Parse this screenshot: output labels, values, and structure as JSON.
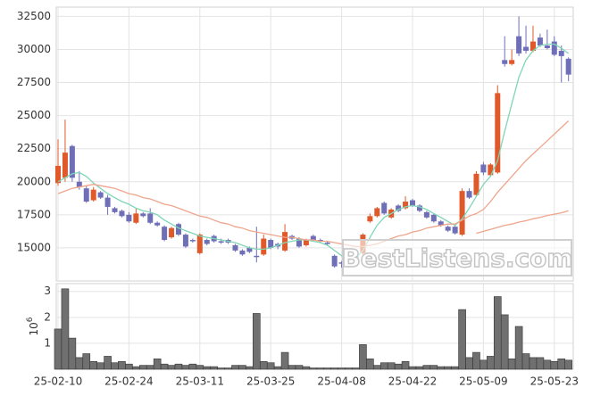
{
  "chart_data": [
    {
      "type": "candlestick",
      "open": [
        19900,
        20300,
        22700,
        20000,
        19500,
        18600,
        19200,
        18800,
        18000,
        17800,
        17500,
        16900,
        17600,
        17600,
        16900,
        16600,
        15800,
        16800,
        16000,
        15600,
        14600,
        15600,
        15900,
        15500,
        15600,
        15200,
        14800,
        15000,
        14400,
        14500,
        15600,
        15300,
        14800,
        15900,
        15700,
        15200,
        15900,
        15600,
        15400,
        14400,
        13900,
        13600,
        14400,
        14600,
        17000,
        17400,
        18400,
        17300,
        18200,
        18000,
        18600,
        18200,
        17700,
        17500,
        17000,
        16600,
        16600,
        16000,
        19300,
        19000,
        21300,
        20500,
        20700,
        29200,
        28900,
        31000,
        30200,
        29900,
        30900,
        30300,
        30600,
        29900,
        29300
      ],
      "high": [
        23200,
        24700,
        22800,
        20800,
        19700,
        19600,
        19300,
        19000,
        18100,
        17900,
        17700,
        18000,
        17700,
        18000,
        17000,
        16700,
        16600,
        16900,
        16100,
        15700,
        16100,
        15700,
        16000,
        15700,
        15700,
        15300,
        14900,
        15100,
        16600,
        16000,
        15700,
        15400,
        16800,
        16000,
        15800,
        15700,
        16000,
        15700,
        15500,
        14500,
        14000,
        13900,
        14500,
        16100,
        17600,
        18100,
        18500,
        18000,
        18300,
        18900,
        18700,
        18300,
        17800,
        17600,
        17100,
        16700,
        16700,
        19500,
        19500,
        20800,
        21500,
        21400,
        27300,
        31000,
        30000,
        32500,
        31800,
        31800,
        31200,
        31500,
        31000,
        30300,
        29400
      ],
      "low": [
        19700,
        20000,
        20000,
        19400,
        18400,
        18500,
        18700,
        17500,
        17600,
        17300,
        16900,
        16800,
        17300,
        16800,
        16600,
        15500,
        15700,
        15900,
        15000,
        15400,
        14500,
        15200,
        15400,
        15300,
        15300,
        14700,
        14400,
        14600,
        13900,
        14400,
        14900,
        14900,
        14700,
        15600,
        15000,
        15100,
        15500,
        15400,
        15200,
        13500,
        13500,
        13500,
        13900,
        14500,
        16900,
        17300,
        17500,
        17200,
        17700,
        17900,
        18100,
        17700,
        17200,
        16900,
        16600,
        16200,
        16000,
        15900,
        18700,
        18900,
        20500,
        20400,
        20600,
        28700,
        28800,
        29500,
        29700,
        29800,
        30200,
        30000,
        29500,
        27500,
        27600
      ],
      "close": [
        21200,
        22200,
        20300,
        19600,
        18500,
        19400,
        18800,
        18100,
        17700,
        17400,
        17000,
        17600,
        17400,
        16900,
        16700,
        15600,
        16500,
        16000,
        15100,
        15500,
        16000,
        15300,
        15500,
        15400,
        15400,
        14800,
        14500,
        14700,
        14300,
        15700,
        15000,
        15100,
        16200,
        15700,
        15100,
        15600,
        15600,
        15500,
        15300,
        13600,
        13800,
        13800,
        14000,
        16000,
        17400,
        18000,
        17600,
        17900,
        17800,
        18500,
        18200,
        17800,
        17300,
        17000,
        16700,
        16300,
        16100,
        19300,
        18800,
        20600,
        20700,
        21300,
        26700,
        28900,
        29200,
        29700,
        29900,
        30600,
        30300,
        30100,
        29600,
        29500,
        28100
      ],
      "up_color": "#e0592a",
      "down_color": "#6f6fb8",
      "lines": [
        {
          "color": "#7fd6b6",
          "values": [
            20000,
            20300,
            20600,
            20700,
            20400,
            19900,
            19500,
            19100,
            18800,
            18500,
            18300,
            18000,
            17800,
            17700,
            17500,
            17100,
            16800,
            16500,
            16300,
            16100,
            15900,
            15800,
            15700,
            15600,
            15500,
            15400,
            15200,
            15000,
            14900,
            14900,
            15000,
            15200,
            15400,
            15500,
            15600,
            15600,
            15500,
            15400,
            15200,
            14800,
            14400,
            14100,
            14200,
            14800,
            15800,
            16700,
            17300,
            17600,
            17900,
            18100,
            18200,
            18100,
            17900,
            17600,
            17300,
            17000,
            16700,
            17200,
            18000,
            18900,
            19800,
            20400,
            21600,
            23800,
            25900,
            27900,
            29200,
            29900,
            30300,
            30400,
            30400,
            30100,
            29700
          ]
        },
        {
          "color": "#eea58c",
          "values": [
            19100,
            19300,
            19500,
            19600,
            19700,
            19800,
            19700,
            19600,
            19500,
            19300,
            19100,
            19000,
            18800,
            18700,
            18500,
            18300,
            18200,
            18000,
            17800,
            17600,
            17400,
            17300,
            17100,
            16900,
            16800,
            16600,
            16500,
            16300,
            16200,
            16100,
            16000,
            15900,
            15800,
            15800,
            15700,
            15600,
            15600,
            15500,
            15500,
            15400,
            15300,
            15200,
            15100,
            15100,
            15200,
            15300,
            15500,
            15700,
            15900,
            16000,
            16200,
            16300,
            16500,
            16600,
            16700,
            16800,
            16800,
            17100,
            17400,
            17600,
            17900,
            18500,
            19200,
            19800,
            20400,
            21000,
            21600,
            22100,
            22600,
            23100,
            23600,
            24100,
            24600
          ]
        },
        {
          "color": "#eea58c",
          "values": [
            null,
            null,
            null,
            null,
            null,
            null,
            null,
            null,
            null,
            null,
            null,
            null,
            null,
            null,
            null,
            null,
            null,
            null,
            null,
            null,
            null,
            null,
            null,
            null,
            null,
            null,
            null,
            null,
            null,
            null,
            null,
            null,
            null,
            null,
            null,
            null,
            null,
            null,
            null,
            null,
            null,
            null,
            null,
            null,
            null,
            null,
            null,
            null,
            null,
            null,
            null,
            null,
            null,
            null,
            null,
            null,
            null,
            null,
            null,
            16100,
            16250,
            16400,
            16550,
            16700,
            16800,
            16950,
            17050,
            17200,
            17300,
            17450,
            17550,
            17650,
            17800
          ]
        }
      ],
      "ylim": [
        12500,
        33200
      ],
      "yticks": [
        15000,
        17500,
        20000,
        22500,
        25000,
        27500,
        30000,
        32500
      ],
      "grid": true,
      "watermark": "BestListens.com"
    },
    {
      "type": "bar",
      "categories": [
        "25-02-10",
        null,
        null,
        null,
        null,
        null,
        null,
        null,
        null,
        null,
        "25-02-24",
        null,
        null,
        null,
        null,
        null,
        null,
        null,
        null,
        null,
        "25-03-11",
        null,
        null,
        null,
        null,
        null,
        null,
        null,
        null,
        null,
        "25-03-25",
        null,
        null,
        null,
        null,
        null,
        null,
        null,
        null,
        null,
        "25-04-08",
        null,
        null,
        null,
        null,
        null,
        null,
        null,
        null,
        null,
        "25-04-22",
        null,
        null,
        null,
        null,
        null,
        null,
        null,
        null,
        null,
        "25-05-09",
        null,
        null,
        null,
        null,
        null,
        null,
        null,
        null,
        null,
        "25-05-23",
        null,
        null
      ],
      "values": [
        1.55,
        3.1,
        1.2,
        0.45,
        0.6,
        0.3,
        0.25,
        0.5,
        0.25,
        0.3,
        0.2,
        0.1,
        0.15,
        0.15,
        0.4,
        0.2,
        0.15,
        0.2,
        0.15,
        0.2,
        0.15,
        0.1,
        0.1,
        0.05,
        0.05,
        0.15,
        0.15,
        0.1,
        2.15,
        0.3,
        0.25,
        0.1,
        0.65,
        0.15,
        0.15,
        0.1,
        0.05,
        0.05,
        0.05,
        0.05,
        0.05,
        0.05,
        0.05,
        0.95,
        0.4,
        0.15,
        0.25,
        0.25,
        0.2,
        0.3,
        0.1,
        0.1,
        0.15,
        0.15,
        0.1,
        0.1,
        0.1,
        2.3,
        0.45,
        0.65,
        0.35,
        0.5,
        2.8,
        2.1,
        0.4,
        1.65,
        0.6,
        0.45,
        0.45,
        0.35,
        0.3,
        0.4,
        0.35
      ],
      "color": "#707070",
      "ylim": [
        0,
        3.3
      ],
      "yticks": [
        1,
        2,
        3
      ],
      "ylabel_base": "10",
      "ylabel_exponent": "6",
      "grid": true
    }
  ]
}
